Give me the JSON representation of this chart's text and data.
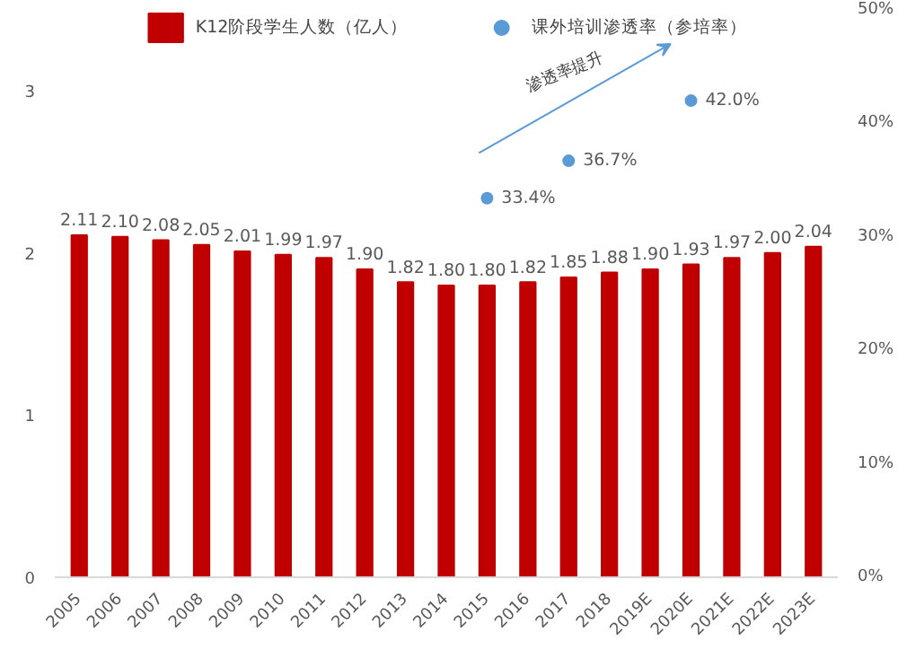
{
  "chart_data": {
    "type": "bar",
    "categories": [
      "2005",
      "2006",
      "2007",
      "2008",
      "2009",
      "2010",
      "2011",
      "2012",
      "2013",
      "2014",
      "2015",
      "2016",
      "2017",
      "2018",
      "2019E",
      "2020E",
      "2021E",
      "2022E",
      "2023E"
    ],
    "series": [
      {
        "name": "K12阶段学生人数（亿人）",
        "color": "#c00000",
        "values": [
          2.11,
          2.1,
          2.08,
          2.05,
          2.01,
          1.99,
          1.97,
          1.9,
          1.82,
          1.8,
          1.8,
          1.82,
          1.85,
          1.88,
          1.9,
          1.93,
          1.97,
          2.0,
          2.04
        ],
        "value_labels": [
          "2.11",
          "2.10",
          "2.08",
          "2.05",
          "2.01",
          "1.99",
          "1.97",
          "1.90",
          "1.82",
          "1.80",
          "1.80",
          "1.82",
          "1.85",
          "1.88",
          "1.90",
          "1.93",
          "1.97",
          "2.00",
          "2.04"
        ]
      },
      {
        "name": "课外培训渗透率（参培率）",
        "type": "scatter",
        "axis": "y2",
        "color": "#5b9bd5",
        "values": [
          null,
          null,
          null,
          null,
          null,
          null,
          null,
          null,
          null,
          null,
          33.4,
          null,
          36.7,
          null,
          null,
          42.0,
          null,
          null,
          null
        ],
        "value_labels": [
          null,
          null,
          null,
          null,
          null,
          null,
          null,
          null,
          null,
          null,
          "33.4%",
          null,
          "36.7%",
          null,
          null,
          "42.0%",
          null,
          null,
          null
        ]
      }
    ],
    "ylim": [
      0,
      3.5
    ],
    "yticks": [
      0,
      1,
      2,
      3
    ],
    "y2lim": [
      0,
      50
    ],
    "y2ticks": [
      {
        "value": 0,
        "label": "0%"
      },
      {
        "value": 10,
        "label": "10%"
      },
      {
        "value": 20,
        "label": "20%"
      },
      {
        "value": 30,
        "label": "30%"
      },
      {
        "value": 40,
        "label": "40%"
      },
      {
        "value": 50,
        "label": "50%"
      }
    ],
    "marker": "circle",
    "legend": "top",
    "grid": false,
    "annotations": [
      "渗透率提升"
    ]
  }
}
